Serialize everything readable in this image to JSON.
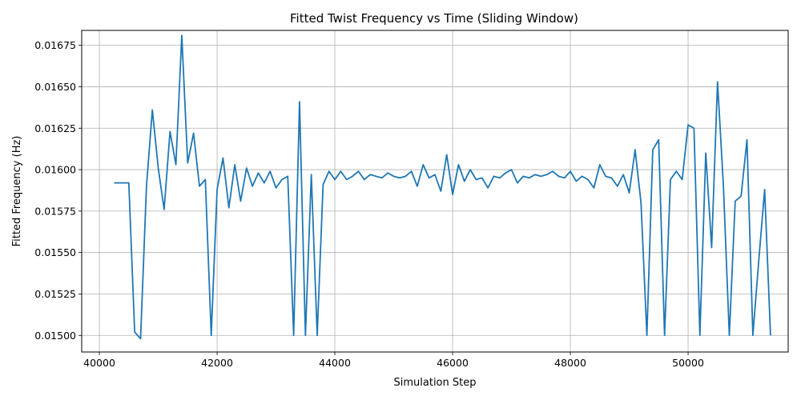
{
  "chart_data": {
    "type": "line",
    "title": "Fitted Twist Frequency vs Time (Sliding Window)",
    "xlabel": "Simulation Step",
    "ylabel": "Fitted Frequency (Hz)",
    "xlim": [
      39700,
      51700
    ],
    "ylim": [
      0.0149,
      0.01684
    ],
    "grid": true,
    "line_color": "#1f77b4",
    "x_ticks": [
      40000,
      42000,
      44000,
      46000,
      48000,
      50000
    ],
    "x_tick_labels": [
      "40000",
      "42000",
      "44000",
      "46000",
      "48000",
      "50000"
    ],
    "y_ticks": [
      0.015,
      0.01525,
      0.0155,
      0.01575,
      0.016,
      0.01625,
      0.0165,
      0.01675
    ],
    "y_tick_labels": [
      "0.01500",
      "0.01525",
      "0.01550",
      "0.01575",
      "0.01600",
      "0.01625",
      "0.01650",
      "0.01675"
    ],
    "series": [
      {
        "x": [
          40250,
          40350,
          40450,
          40500,
          40600,
          40700,
          40800,
          40900,
          41000,
          41100,
          41200,
          41300,
          41400,
          41500,
          41600,
          41700,
          41800,
          41900,
          42000,
          42100,
          42200,
          42300,
          42400,
          42500,
          42600,
          42700,
          42800,
          42900,
          43000,
          43100,
          43200,
          43300,
          43400,
          43500,
          43600,
          43700,
          43800,
          43900,
          44000,
          44100,
          44200,
          44300,
          44400,
          44500,
          44600,
          44700,
          44800,
          44900,
          45000,
          45100,
          45200,
          45300,
          45400,
          45500,
          45600,
          45700,
          45800,
          45900,
          46000,
          46100,
          46200,
          46300,
          46400,
          46500,
          46600,
          46700,
          46800,
          46900,
          47000,
          47100,
          47200,
          47300,
          47400,
          47500,
          47600,
          47700,
          47800,
          47900,
          48000,
          48100,
          48200,
          48300,
          48400,
          48500,
          48600,
          48700,
          48800,
          48900,
          49000,
          49100,
          49200,
          49300,
          49400,
          49500,
          49600,
          49700,
          49800,
          49900,
          50000,
          50100,
          50200,
          50300,
          50400,
          50500,
          50600,
          50700,
          50800,
          50900,
          51000,
          51100,
          51200,
          51300,
          51400
        ],
        "values": [
          0.01592,
          0.01592,
          0.01592,
          0.01592,
          0.01502,
          0.01498,
          0.0159,
          0.01636,
          0.01601,
          0.01576,
          0.01623,
          0.01603,
          0.01681,
          0.01604,
          0.01622,
          0.0159,
          0.01594,
          0.015,
          0.01588,
          0.01607,
          0.01577,
          0.01603,
          0.01581,
          0.01601,
          0.0159,
          0.01598,
          0.01592,
          0.01599,
          0.01589,
          0.01594,
          0.01596,
          0.015,
          0.01641,
          0.015,
          0.01597,
          0.015,
          0.01591,
          0.01599,
          0.01594,
          0.01599,
          0.01594,
          0.01596,
          0.01599,
          0.01594,
          0.01597,
          0.01596,
          0.01595,
          0.01598,
          0.01596,
          0.01595,
          0.01596,
          0.01599,
          0.0159,
          0.01603,
          0.01595,
          0.01597,
          0.01587,
          0.01609,
          0.01585,
          0.01603,
          0.01593,
          0.016,
          0.01594,
          0.01595,
          0.01589,
          0.01596,
          0.01595,
          0.01598,
          0.016,
          0.01592,
          0.01596,
          0.01595,
          0.01597,
          0.01596,
          0.01597,
          0.01599,
          0.01596,
          0.01595,
          0.01599,
          0.01593,
          0.01596,
          0.01594,
          0.01589,
          0.01603,
          0.01596,
          0.01595,
          0.0159,
          0.01597,
          0.01586,
          0.01612,
          0.0158,
          0.015,
          0.01612,
          0.01618,
          0.015,
          0.01594,
          0.01599,
          0.01594,
          0.01627,
          0.01625,
          0.015,
          0.0161,
          0.01553,
          0.01653,
          0.0159,
          0.015,
          0.01581,
          0.01584,
          0.01618,
          0.015,
          0.01545,
          0.01588,
          0.015
        ]
      }
    ]
  }
}
